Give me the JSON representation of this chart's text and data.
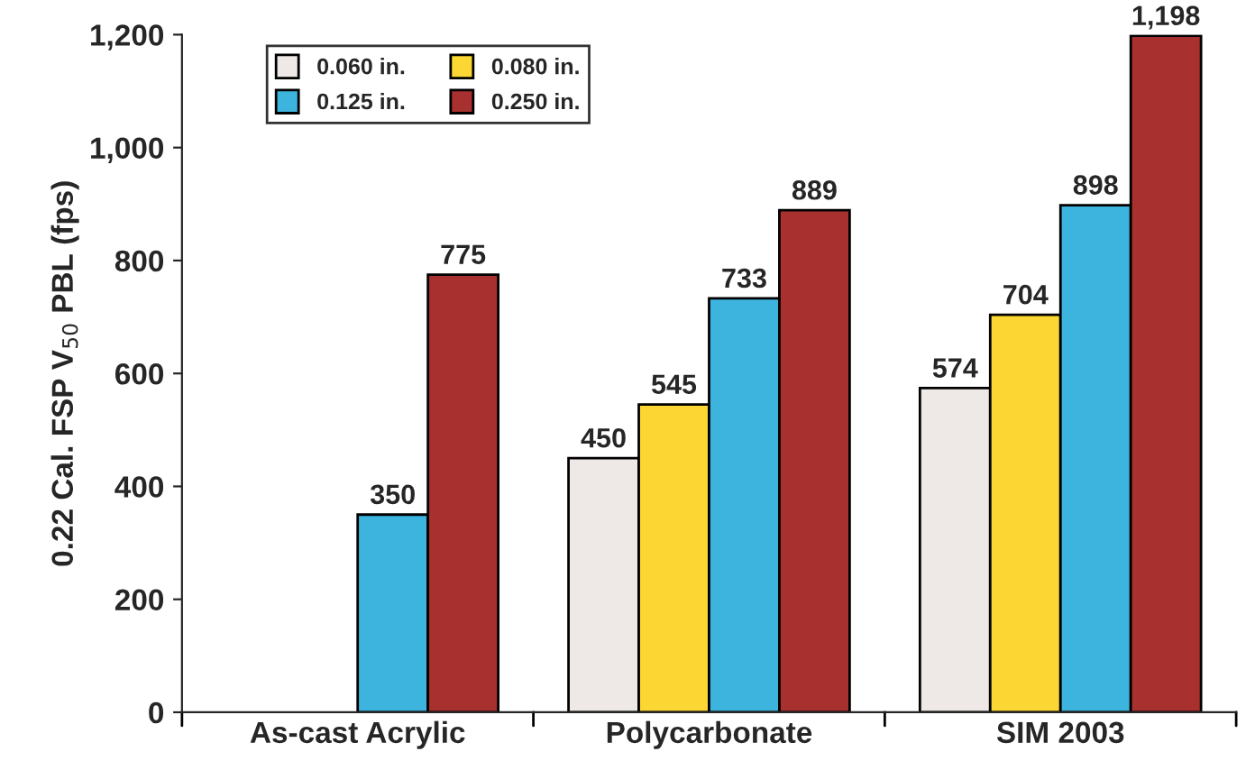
{
  "chart_data": {
    "type": "bar",
    "ylabel": "0.22 Cal. FSP V$_{50}$ PBL (fps)",
    "categories": [
      "As-cast Acrylic",
      "Polycarbonate",
      "SIM 2003"
    ],
    "series": [
      {
        "name": "0.060 in.",
        "color": "#eee8e6",
        "values": [
          null,
          450,
          574
        ],
        "value_labels": [
          null,
          "450",
          "574"
        ]
      },
      {
        "name": "0.080 in.",
        "color": "#fcd734",
        "values": [
          null,
          545,
          704
        ],
        "value_labels": [
          null,
          "545",
          "704"
        ]
      },
      {
        "name": "0.125 in.",
        "color": "#3db4de",
        "values": [
          350,
          733,
          898
        ],
        "value_labels": [
          "350",
          "733",
          "898"
        ]
      },
      {
        "name": "0.250 in.",
        "color": "#a8302f",
        "values": [
          775,
          889,
          1198
        ],
        "value_labels": [
          "775",
          "889",
          "1,198"
        ]
      }
    ],
    "ylim": [
      0,
      1200
    ],
    "yticks": [
      0,
      200,
      400,
      600,
      800,
      {
        "value": 1000,
        "label": "1,000"
      },
      {
        "value": 1200,
        "label": "1,200"
      }
    ],
    "legend": "top left",
    "grid": false
  }
}
